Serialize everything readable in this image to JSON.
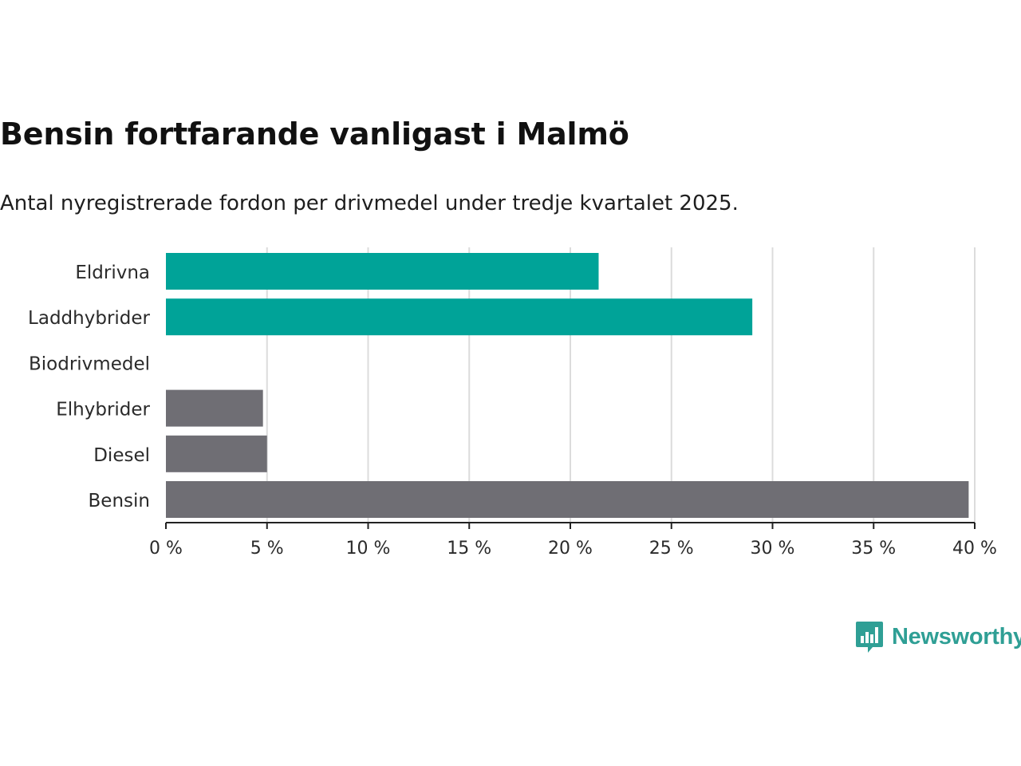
{
  "header": {
    "title": "Bensin fortfarande vanligast i Malmö",
    "subtitle": "Antal nyregistrerade fordon per drivmedel under tredje kvartalet 2025."
  },
  "brand": {
    "name": "Newsworthy",
    "color": "#2f9f95"
  },
  "chart_data": {
    "type": "bar",
    "orientation": "horizontal",
    "title": "Bensin fortfarande vanligast i Malmö",
    "subtitle": "Antal nyregistrerade fordon per drivmedel under tredje kvartalet 2025.",
    "categories": [
      "Eldrivna",
      "Laddhybrider",
      "Biodrivmedel",
      "Elhybrider",
      "Diesel",
      "Bensin"
    ],
    "values": [
      21.4,
      29.0,
      0,
      4.8,
      5.0,
      39.7
    ],
    "colors": [
      "#00a398",
      "#00a398",
      "#00a398",
      "#6f6e74",
      "#6f6e74",
      "#6f6e74"
    ],
    "xlim": [
      0,
      40
    ],
    "xticks": [
      0,
      5,
      10,
      15,
      20,
      25,
      30,
      35,
      40
    ],
    "xtick_labels": [
      "0 %",
      "5 %",
      "10 %",
      "15 %",
      "20 %",
      "25 %",
      "30 %",
      "35 %",
      "40 %"
    ],
    "unit": "%",
    "grid": true,
    "xlabel": "",
    "ylabel": ""
  }
}
